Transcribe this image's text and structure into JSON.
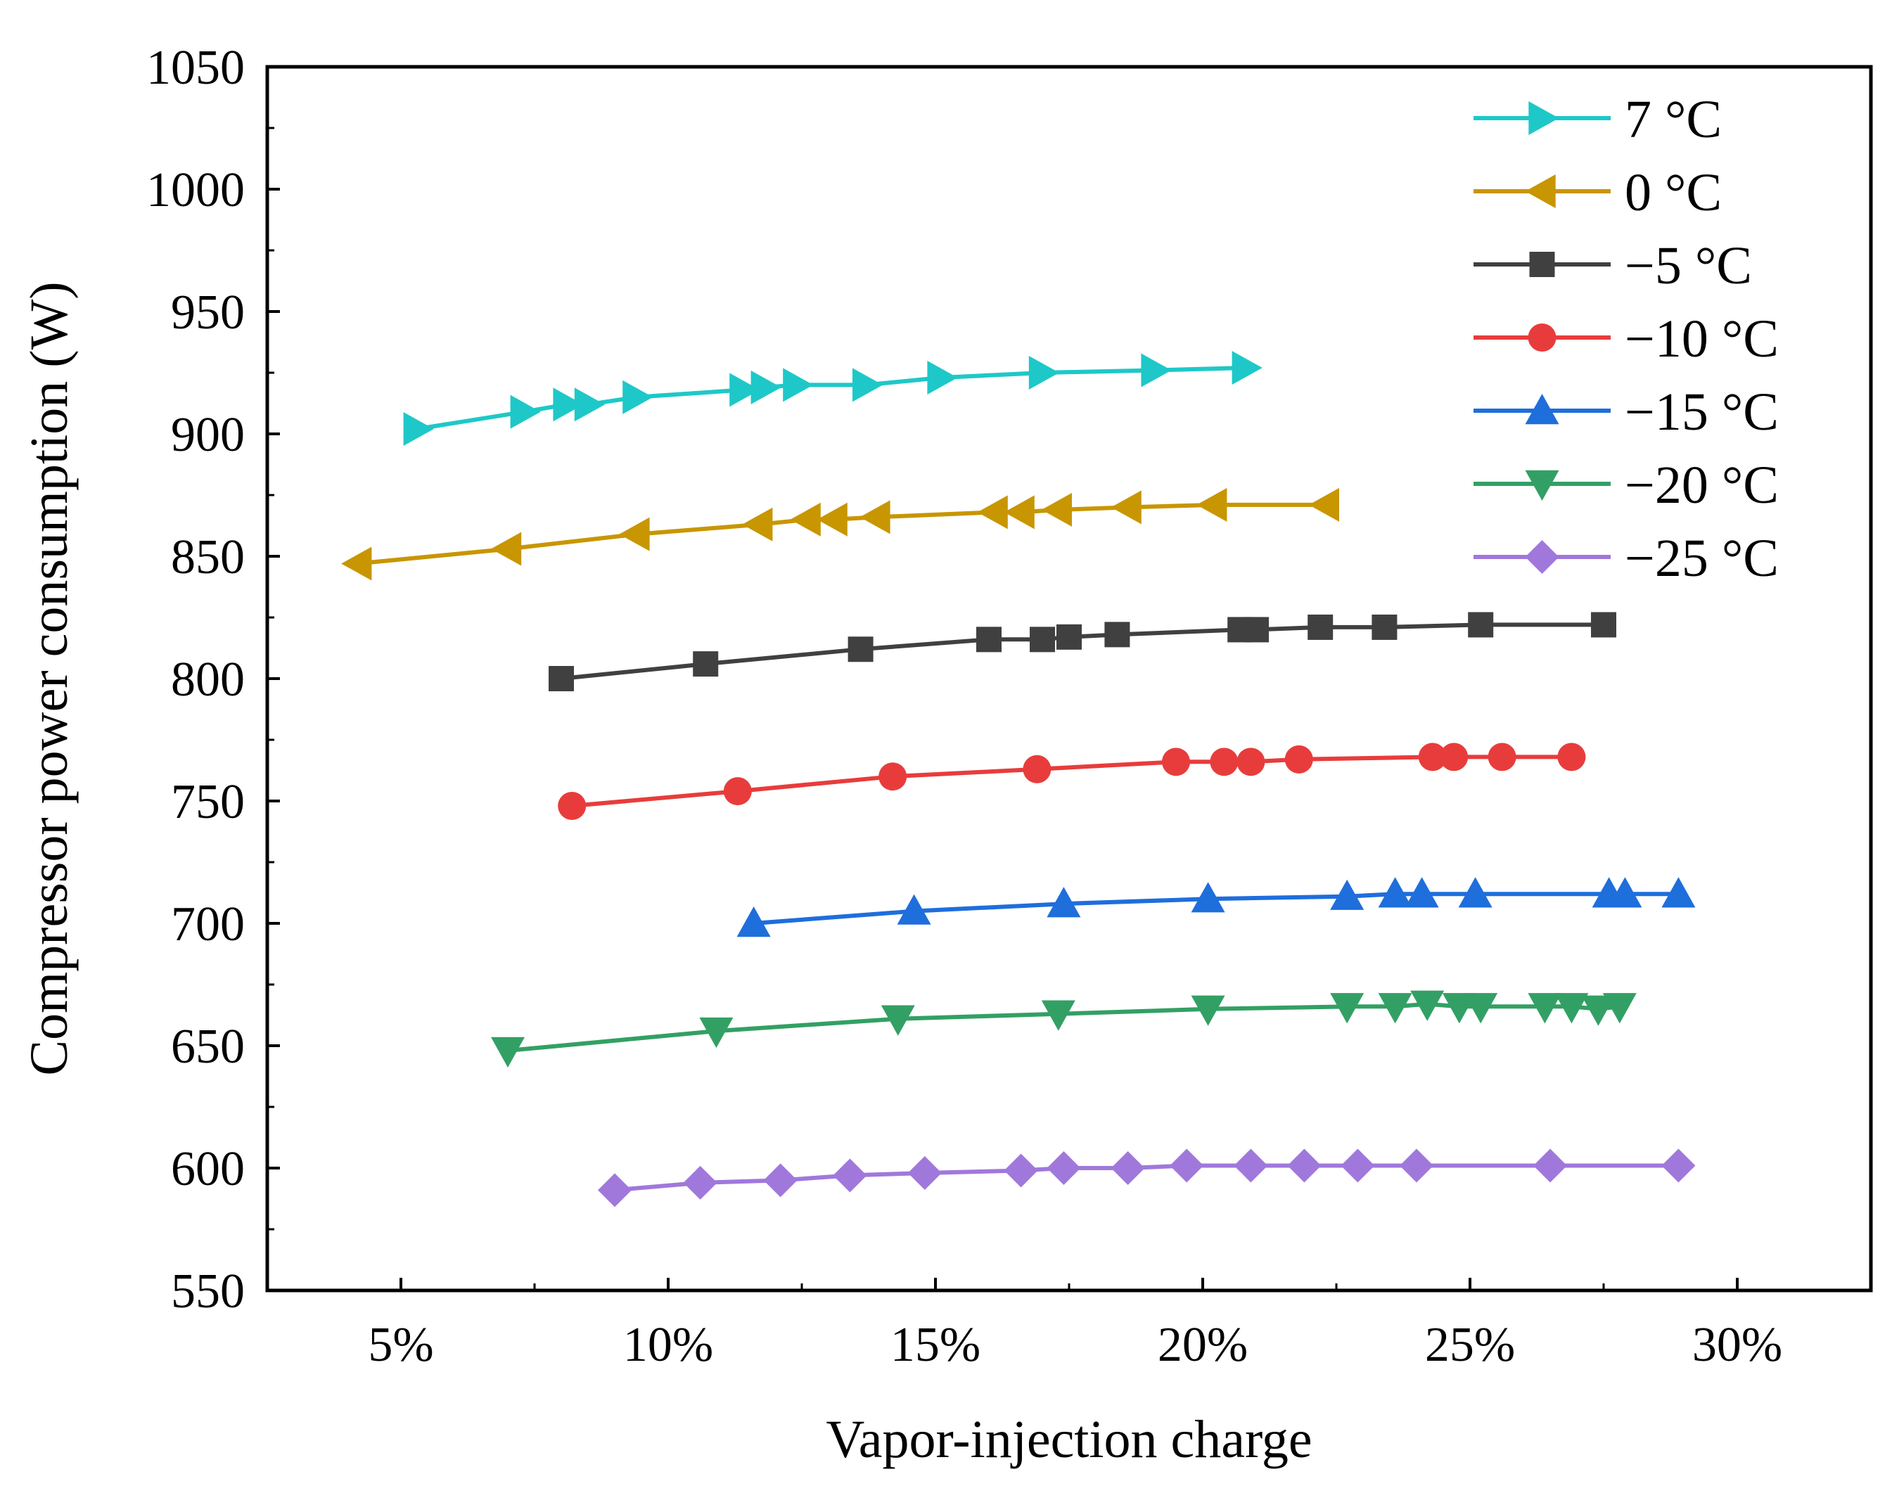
{
  "chart_data": {
    "type": "line",
    "title": "",
    "xlabel": "Vapor-injection charge",
    "ylabel": "Compressor power consumption (W)",
    "xlim": [
      2.5,
      32.5
    ],
    "ylim": [
      550,
      1050
    ],
    "xticks": [
      5,
      10,
      15,
      20,
      25,
      30
    ],
    "xtick_labels": [
      "5%",
      "10%",
      "15%",
      "20%",
      "25%",
      "30%"
    ],
    "yticks": [
      550,
      600,
      650,
      700,
      750,
      800,
      850,
      900,
      950,
      1000,
      1050
    ],
    "ytick_labels": [
      "550",
      "600",
      "650",
      "700",
      "750",
      "800",
      "850",
      "900",
      "950",
      "1000",
      "1050"
    ],
    "legend_position": "top-right",
    "series": [
      {
        "name": "7 °C",
        "color": "#1ec8c8",
        "marker": "triangle-right",
        "x": [
          5.3,
          7.3,
          8.1,
          8.5,
          9.4,
          11.4,
          11.8,
          12.4,
          13.7,
          15.1,
          17.0,
          19.1,
          20.8
        ],
        "y": [
          902,
          909,
          912,
          912,
          915,
          918,
          919,
          920,
          920,
          923,
          925,
          926,
          927
        ]
      },
      {
        "name": "0 °C",
        "color": "#c89600",
        "marker": "triangle-left",
        "x": [
          4.2,
          7.0,
          9.4,
          11.7,
          12.6,
          13.1,
          13.9,
          16.1,
          16.6,
          17.3,
          18.6,
          20.2,
          22.3
        ],
        "y": [
          847,
          853,
          859,
          863,
          865,
          865,
          866,
          868,
          868,
          869,
          870,
          871,
          871
        ]
      },
      {
        "name": "−5 °C",
        "color": "#404040",
        "marker": "square",
        "x": [
          8.0,
          10.7,
          13.6,
          16.0,
          17.0,
          17.5,
          18.4,
          20.7,
          21.0,
          22.2,
          23.4,
          25.2,
          27.5
        ],
        "y": [
          800,
          806,
          812,
          816,
          816,
          817,
          818,
          820,
          820,
          821,
          821,
          822,
          822
        ]
      },
      {
        "name": "−10 °C",
        "color": "#e83c3c",
        "marker": "circle",
        "x": [
          8.2,
          11.3,
          14.2,
          16.9,
          19.5,
          20.4,
          20.9,
          21.8,
          24.3,
          24.7,
          25.6,
          26.9
        ],
        "y": [
          748,
          754,
          760,
          763,
          766,
          766,
          766,
          767,
          768,
          768,
          768,
          768
        ]
      },
      {
        "name": "−15 °C",
        "color": "#1e6edc",
        "marker": "triangle-up",
        "x": [
          11.6,
          14.6,
          17.4,
          20.1,
          22.7,
          23.6,
          24.1,
          25.1,
          27.6,
          27.9,
          28.9
        ],
        "y": [
          700,
          705,
          708,
          710,
          711,
          712,
          712,
          712,
          712,
          712,
          712
        ]
      },
      {
        "name": "−20 °C",
        "color": "#32a064",
        "marker": "triangle-down",
        "x": [
          7.0,
          10.9,
          14.3,
          17.3,
          20.1,
          22.7,
          23.6,
          24.2,
          24.8,
          25.2,
          26.4,
          26.9,
          27.4,
          27.8
        ],
        "y": [
          648,
          656,
          661,
          663,
          665,
          666,
          666,
          667,
          666,
          666,
          666,
          666,
          665,
          666
        ]
      },
      {
        "name": "−25 °C",
        "color": "#a078dc",
        "marker": "diamond",
        "x": [
          9.0,
          10.6,
          12.1,
          13.4,
          14.8,
          16.6,
          17.4,
          18.6,
          19.7,
          20.9,
          21.9,
          22.9,
          24.0,
          26.5,
          28.9
        ],
        "y": [
          591,
          594,
          595,
          597,
          598,
          599,
          600,
          600,
          601,
          601,
          601,
          601,
          601,
          601,
          601
        ]
      }
    ]
  }
}
